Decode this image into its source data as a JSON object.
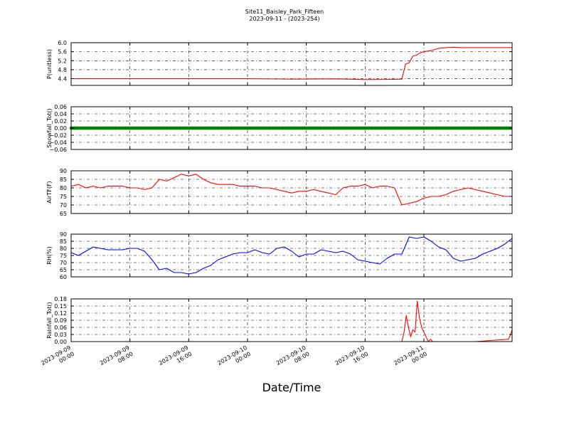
{
  "figure": {
    "title_line1": "Site11_Baisley_Park_Fifteen",
    "title_line2": "2023-09-11 - (2023-254)",
    "xlabel": "Date/Time"
  },
  "chart_data": [
    {
      "type": "line",
      "ylabel": "P(unitless)",
      "ylim": [
        4.1,
        6.0
      ],
      "yticks": [
        "4.4",
        "4.8",
        "5.2",
        "5.6",
        "6.0"
      ],
      "ytick_values": [
        4.4,
        4.8,
        5.2,
        5.6,
        6.0
      ],
      "color": "#ff0000",
      "grid": true,
      "x_hours": [
        0,
        6,
        12,
        18,
        24,
        30,
        36,
        40,
        44,
        45.0,
        45.5,
        46.0,
        46.5,
        47.0,
        47.5,
        48,
        49,
        50,
        51,
        52,
        53,
        54,
        56,
        58,
        60
      ],
      "values": [
        4.4,
        4.4,
        4.4,
        4.4,
        4.4,
        4.38,
        4.39,
        4.36,
        4.37,
        4.38,
        5.05,
        5.1,
        5.4,
        5.45,
        5.55,
        5.6,
        5.65,
        5.75,
        5.78,
        5.8,
        5.78,
        5.78,
        5.78,
        5.78,
        5.78
      ]
    },
    {
      "type": "line",
      "ylabel": "Snowfall_Tot()",
      "ylim": [
        -0.06,
        0.06
      ],
      "yticks": [
        "−0.06",
        "−0.04",
        "−0.02",
        "0.00",
        "0.02",
        "0.04",
        "0.06"
      ],
      "ytick_values": [
        -0.06,
        -0.04,
        -0.02,
        0.0,
        0.02,
        0.04,
        0.06
      ],
      "color": "#008000",
      "grid": true,
      "markers": true,
      "x_hours": [
        0,
        60
      ],
      "values": [
        0.0,
        0.0
      ]
    },
    {
      "type": "line",
      "ylabel": "AirTF(F)",
      "ylim": [
        65,
        90
      ],
      "yticks": [
        "65",
        "70",
        "75",
        "80",
        "85",
        "90"
      ],
      "ytick_values": [
        65,
        70,
        75,
        80,
        85,
        90
      ],
      "color": "#ff0000",
      "grid": true,
      "x_hours": [
        0,
        1,
        2,
        3,
        4,
        5,
        6,
        7,
        8,
        9,
        10,
        11,
        12,
        13,
        14,
        15,
        16,
        17,
        18,
        19,
        20,
        21,
        22,
        23,
        24,
        25,
        26,
        27,
        28,
        29,
        30,
        31,
        32,
        33,
        34,
        35,
        36,
        37,
        38,
        39,
        40,
        41,
        42,
        43,
        44,
        45,
        46,
        47,
        48,
        49,
        50,
        51,
        52,
        53,
        54,
        55,
        56,
        57,
        58,
        59,
        60
      ],
      "values": [
        81,
        82,
        80,
        81,
        80,
        81,
        81,
        81,
        80,
        80,
        79,
        80,
        85,
        84,
        86,
        88,
        87,
        88,
        85,
        83,
        82,
        82,
        82,
        81,
        81,
        81,
        80,
        80,
        79,
        78,
        77,
        78,
        78,
        79,
        78,
        77,
        76,
        80,
        81,
        81,
        82,
        80,
        81,
        81,
        80,
        70,
        71,
        72,
        74,
        75,
        75,
        76,
        78,
        79,
        80,
        79,
        78,
        77,
        76,
        75,
        75
      ]
    },
    {
      "type": "line",
      "ylabel": "RH(%)",
      "ylim": [
        60,
        90
      ],
      "yticks": [
        "60",
        "65",
        "70",
        "75",
        "80",
        "85",
        "90"
      ],
      "ytick_values": [
        60,
        65,
        70,
        75,
        80,
        85,
        90
      ],
      "color": "#0000ff",
      "grid": true,
      "x_hours": [
        0,
        1,
        2,
        3,
        4,
        5,
        6,
        7,
        8,
        9,
        10,
        11,
        12,
        13,
        14,
        15,
        16,
        17,
        18,
        19,
        20,
        21,
        22,
        23,
        24,
        25,
        26,
        27,
        28,
        29,
        30,
        31,
        32,
        33,
        34,
        35,
        36,
        37,
        38,
        39,
        40,
        41,
        42,
        43,
        44,
        45,
        46,
        47,
        48,
        49,
        50,
        51,
        52,
        53,
        54,
        55,
        56,
        57,
        58,
        59,
        60
      ],
      "values": [
        77,
        75,
        78,
        81,
        80,
        79,
        79,
        79,
        80,
        80,
        78,
        72,
        65,
        66,
        63,
        63,
        62,
        63,
        66,
        68,
        72,
        74,
        76,
        77,
        77,
        79,
        77,
        76,
        80,
        81,
        78,
        74,
        76,
        76,
        79,
        78,
        77,
        78,
        76,
        72,
        71,
        70,
        69,
        73,
        76,
        76,
        88,
        87,
        88,
        85,
        81,
        79,
        73,
        71,
        72,
        73,
        76,
        78,
        80,
        83,
        87
      ]
    },
    {
      "type": "line",
      "ylabel": "Rainfall_Tot()",
      "ylim": [
        0.0,
        0.18
      ],
      "yticks": [
        "0.00",
        "0.03",
        "0.06",
        "0.09",
        "0.12",
        "0.15",
        "0.18"
      ],
      "ytick_values": [
        0.0,
        0.03,
        0.06,
        0.09,
        0.12,
        0.15,
        0.18
      ],
      "color": "#ff0000",
      "grid": true,
      "x_hours": [
        0,
        10,
        20,
        30,
        40,
        45.0,
        45.3,
        45.6,
        45.9,
        46.2,
        46.5,
        46.8,
        47.1,
        47.4,
        47.7,
        48.0,
        48.3,
        48.6,
        48.9,
        49.2,
        49.5,
        50,
        55,
        59.5,
        59.8,
        60
      ],
      "values": [
        0,
        0,
        0,
        0,
        0,
        0,
        0.04,
        0.11,
        0.06,
        0.02,
        0.05,
        0.04,
        0.17,
        0.1,
        0.06,
        0.04,
        0.02,
        0.0,
        0.01,
        0.0,
        0.0,
        0.0,
        0.0,
        0.01,
        0.03,
        0.05
      ]
    }
  ],
  "x_axis": {
    "xlim_hours": [
      0,
      60
    ],
    "tick_hours": [
      0,
      8,
      16,
      24,
      32,
      40,
      48
    ],
    "tick_labels": [
      [
        "2023-09-09",
        "00:00"
      ],
      [
        "2023-09-09",
        "08:00"
      ],
      [
        "2023-09-09",
        "16:00"
      ],
      [
        "2023-09-10",
        "00:00"
      ],
      [
        "2023-09-10",
        "08:00"
      ],
      [
        "2023-09-10",
        "16:00"
      ],
      [
        "2023-09-11",
        "00:00"
      ]
    ]
  }
}
